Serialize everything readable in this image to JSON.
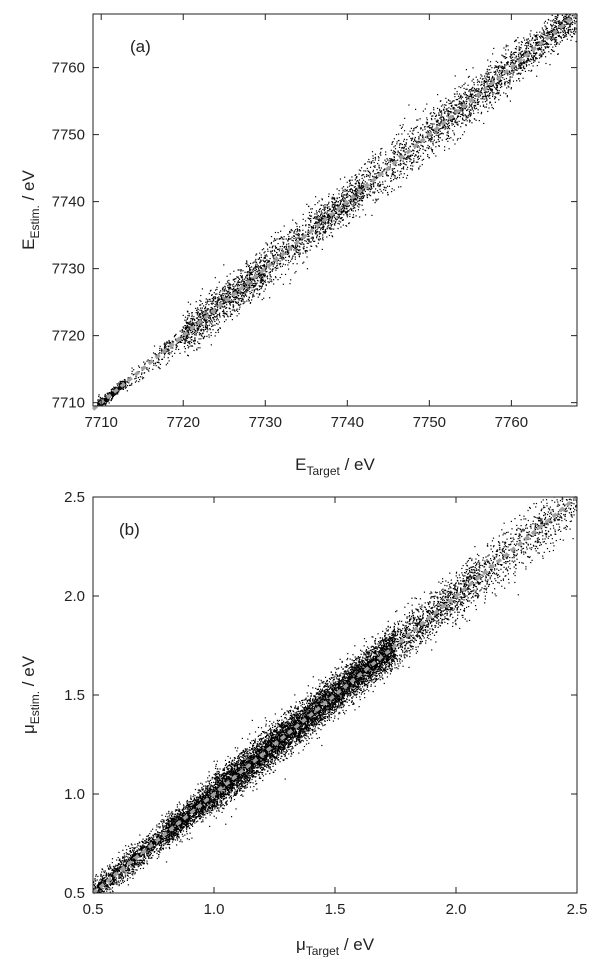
{
  "chart_data": [
    {
      "type": "scatter",
      "panel_label": "(a)",
      "xlabel": {
        "main": "E",
        "sub": "Target",
        "unit": " / eV"
      },
      "ylabel": {
        "main": "E",
        "sub": "Estim.",
        "unit": " / eV"
      },
      "xlim": [
        7709,
        7768
      ],
      "ylim": [
        7709.5,
        7768
      ],
      "xticks": [
        7710,
        7720,
        7730,
        7740,
        7750,
        7760
      ],
      "yticks": [
        7710,
        7720,
        7730,
        7740,
        7750,
        7760
      ],
      "reference_line": {
        "from": [
          7709,
          7709
        ],
        "to": [
          7768,
          7768
        ],
        "style": "dashed",
        "color": "#a0a0a0"
      },
      "point_color": "#000000",
      "point_clusters": [
        {
          "x": [
            7709.5,
            7713
          ],
          "offset_sd": 0.4,
          "density": 0.9
        },
        {
          "x": [
            7713,
            7717
          ],
          "offset_sd": 0.8,
          "y_bias": -0.3,
          "density": 0.15
        },
        {
          "x": [
            7717,
            7720
          ],
          "offset_sd": 1.0,
          "density": 0.35
        },
        {
          "x": [
            7720,
            7730
          ],
          "offset_sd": 1.5,
          "density": 1.0
        },
        {
          "x": [
            7730,
            7736
          ],
          "offset_sd": 1.7,
          "density": 0.6
        },
        {
          "x": [
            7736,
            7742
          ],
          "offset_sd": 1.4,
          "density": 1.0
        },
        {
          "x": [
            7742,
            7750
          ],
          "offset_sd": 1.9,
          "density": 0.55
        },
        {
          "x": [
            7750,
            7760
          ],
          "offset_sd": 1.6,
          "density": 0.75
        },
        {
          "x": [
            7760,
            7768
          ],
          "offset_sd": 1.4,
          "density": 0.8
        }
      ]
    },
    {
      "type": "scatter",
      "panel_label": "(b)",
      "xlabel": {
        "main": "μ",
        "sub": "Target",
        "unit": " / eV"
      },
      "ylabel": {
        "main": "μ",
        "sub": "Estim.",
        "unit": " / eV"
      },
      "xlim": [
        0.5,
        2.5
      ],
      "ylim": [
        0.5,
        2.5
      ],
      "xticks": [
        0.5,
        1.0,
        1.5,
        2.0,
        2.5
      ],
      "yticks": [
        0.5,
        1.0,
        1.5,
        2.0,
        2.5
      ],
      "reference_line": {
        "from": [
          0.5,
          0.5
        ],
        "to": [
          2.5,
          2.5
        ],
        "style": "dashed",
        "color": "#a0a0a0"
      },
      "point_color": "#000000",
      "point_clusters": [
        {
          "x": [
            0.5,
            0.8
          ],
          "offset_sd": 0.035,
          "density": 0.45
        },
        {
          "x": [
            0.8,
            1.0
          ],
          "offset_sd": 0.04,
          "density": 0.8
        },
        {
          "x": [
            1.0,
            1.75
          ],
          "offset_sd": 0.05,
          "density": 1.0
        },
        {
          "x": [
            1.75,
            2.1
          ],
          "offset_sd": 0.06,
          "density": 0.35
        },
        {
          "x": [
            2.1,
            2.5
          ],
          "offset_sd": 0.07,
          "density": 0.2
        }
      ]
    }
  ]
}
